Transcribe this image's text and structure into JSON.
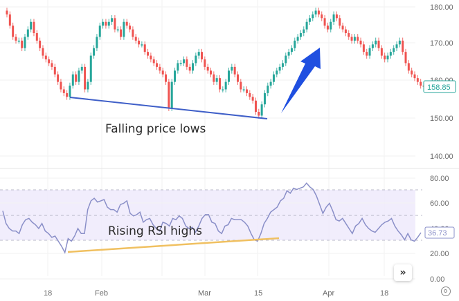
{
  "chart_data": [
    {
      "type": "candlestick",
      "title": "",
      "pane": "price",
      "y_axis": {
        "ticks": [
          "180.00",
          "170.00",
          "160.00",
          "150.00",
          "140.00"
        ],
        "range": [
          137,
          182
        ]
      },
      "last_price_label": "158.85",
      "x_axis": {
        "ticks": [
          "18",
          "Feb",
          "Mar",
          "15",
          "Apr",
          "18"
        ]
      },
      "grid": true,
      "colors": {
        "up": "#26a69a",
        "down": "#ef5350",
        "trendline": "#3f5fc8",
        "arrow": "#1f4fe0",
        "last_price": "#26a69a"
      },
      "annotations": [
        {
          "type": "text",
          "text": "Falling price lows"
        },
        {
          "type": "trendline",
          "label": "price-lows-line",
          "from": {
            "x_label": "~Jan 22",
            "y": 156
          },
          "to": {
            "x_label": "~Mar 18",
            "y": 150.5
          }
        },
        {
          "type": "arrow",
          "direction": "up-right",
          "color": "#1f4fe0"
        }
      ],
      "approx_closes": [
        178,
        175,
        172,
        171,
        171,
        169,
        172,
        174,
        176,
        173,
        171,
        169,
        167,
        166,
        165,
        164,
        162,
        160,
        158,
        157,
        156,
        159,
        162,
        160,
        163,
        164,
        158,
        160,
        167,
        169,
        172,
        175,
        176,
        175,
        176,
        177,
        174,
        174,
        172,
        176,
        175,
        174,
        172,
        171,
        170,
        170,
        168,
        167,
        166,
        165,
        164,
        163,
        162,
        160,
        153,
        160,
        163,
        165,
        165,
        166,
        164,
        163,
        165,
        167,
        168,
        166,
        164,
        163,
        162,
        160,
        161,
        158,
        158,
        160,
        163,
        164,
        162,
        160,
        158,
        158,
        157,
        156,
        155,
        152,
        151,
        154,
        157,
        159,
        160,
        162,
        163,
        164,
        165,
        167,
        168,
        169,
        171,
        172,
        173,
        174,
        176,
        177,
        178,
        179,
        178,
        177,
        175,
        174,
        176,
        178,
        177,
        175,
        174,
        173,
        172,
        171,
        172,
        171,
        170,
        168,
        167,
        169,
        170,
        171,
        169,
        167,
        166,
        167,
        168,
        169,
        170,
        171,
        168,
        165,
        163,
        162,
        161,
        160,
        159,
        158.85
      ]
    },
    {
      "type": "line",
      "pane": "rsi",
      "title": "",
      "series": [
        {
          "name": "RSI",
          "color": "#8a8fc8",
          "values": [
            54,
            44,
            40,
            38,
            38,
            36,
            43,
            47,
            48,
            45,
            43,
            40,
            44,
            38,
            36,
            33,
            34,
            30,
            26,
            21,
            32,
            30,
            34,
            40,
            36,
            36,
            55,
            62,
            64,
            61,
            62,
            63,
            57,
            55,
            55,
            53,
            59,
            60,
            62,
            52,
            50,
            51,
            53,
            45,
            47,
            48,
            43,
            40,
            38,
            45,
            44,
            42,
            48,
            47,
            50,
            48,
            42,
            40,
            41,
            37,
            42,
            48,
            51,
            51,
            45,
            44,
            38,
            36,
            42,
            43,
            48,
            47,
            47,
            47,
            45,
            42,
            36,
            31,
            30,
            36,
            44,
            48,
            53,
            55,
            57,
            62,
            64,
            70,
            68,
            72,
            71,
            72,
            73,
            76,
            73,
            71,
            66,
            59,
            52,
            57,
            60,
            54,
            47,
            46,
            48,
            44,
            40,
            36,
            42,
            44,
            48,
            43,
            40,
            38,
            37,
            40,
            43,
            45,
            46,
            48,
            42,
            38,
            35,
            31,
            36,
            31,
            30,
            33,
            36.73
          ]
        }
      ],
      "y_axis": {
        "ticks": [
          "80.00",
          "60.00",
          "40.00",
          "20.00",
          "0.00"
        ],
        "range": [
          -3,
          84
        ]
      },
      "bands": {
        "upper": 70,
        "middle": 50,
        "lower": 30,
        "fill": "#eeeafc"
      },
      "last_value_label": "36.73",
      "annotations": [
        {
          "type": "text",
          "text": "Rising RSI highs"
        },
        {
          "type": "trendline",
          "label": "rsi-trendline",
          "color": "#f0c060",
          "from": {
            "x_label": "~Jan 22",
            "y": 21
          },
          "to": {
            "x_label": "~Mar 18",
            "y": 31
          }
        }
      ]
    }
  ],
  "ui": {
    "price_axis_labels": [
      "180.00",
      "170.00",
      "160.00",
      "150.00",
      "140.00"
    ],
    "rsi_axis_labels": [
      "80.00",
      "60.00",
      "40.00",
      "20.00",
      "0.00"
    ],
    "time_axis_labels": [
      "18",
      "Feb",
      "Mar",
      "15",
      "Apr",
      "18"
    ],
    "last_price": "158.85",
    "last_rsi": "36.73",
    "annotation_price": "Falling price lows",
    "annotation_rsi": "Rising RSI highs",
    "scroll_button_glyph": "»"
  }
}
